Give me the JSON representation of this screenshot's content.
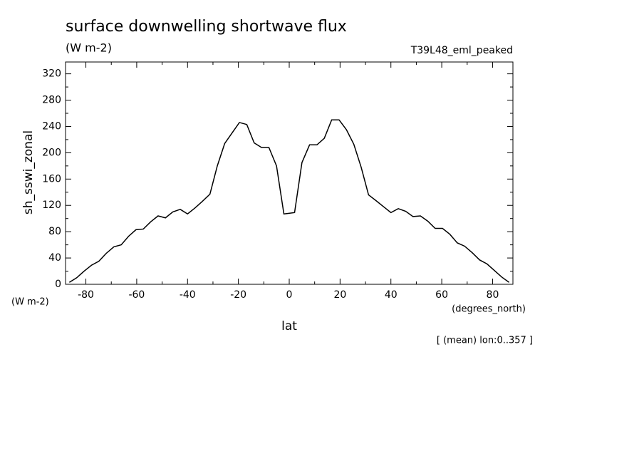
{
  "chart_data": {
    "type": "line",
    "title": "surface downwelling shortwave flux",
    "subtitle": "(W m-2)",
    "annotation": "T39L48_eml_peaked",
    "ylabel": "sh_sswi_zonal",
    "yunits": "(W m-2)",
    "xunits": "(degrees_north)",
    "xlabel": "lat",
    "footnote": "[ (mean) lon:0..357 ]",
    "color": "#000000",
    "x": [
      -86.5,
      -83.6,
      -80.7,
      -77.8,
      -74.9,
      -72.0,
      -69.0,
      -66.1,
      -63.2,
      -60.3,
      -57.4,
      -54.5,
      -51.6,
      -48.7,
      -45.8,
      -42.9,
      -40.0,
      -37.1,
      -34.2,
      -31.2,
      -28.3,
      -25.4,
      -22.5,
      -19.6,
      -16.7,
      -13.8,
      -10.9,
      -8.0,
      -5.0,
      -2.1,
      2.1,
      5.0,
      8.0,
      10.9,
      13.8,
      16.7,
      19.6,
      22.5,
      25.4,
      28.3,
      31.2,
      34.2,
      37.1,
      40.0,
      42.9,
      45.8,
      48.7,
      51.6,
      54.5,
      57.4,
      60.3,
      63.2,
      66.1,
      69.0,
      72.0,
      74.9,
      77.8,
      80.7,
      83.6,
      86.5
    ],
    "values": [
      3,
      10,
      20,
      29,
      35,
      47,
      57,
      60,
      73,
      83,
      84,
      95,
      104,
      101,
      110,
      114,
      107,
      116,
      126,
      137,
      180,
      214,
      230,
      246,
      243,
      215,
      208,
      208,
      180,
      107,
      109,
      185,
      212,
      212,
      222,
      250,
      250,
      235,
      213,
      178,
      136,
      127,
      118,
      109,
      115,
      111,
      103,
      104,
      96,
      85,
      85,
      76,
      63,
      58,
      48,
      37,
      31,
      21,
      11,
      3
    ],
    "xlim": [
      -88,
      88
    ],
    "ylim": [
      0,
      338
    ],
    "xticks": [
      -80,
      -60,
      -40,
      -20,
      0,
      20,
      40,
      60,
      80
    ],
    "yticks": [
      0,
      40,
      80,
      120,
      160,
      200,
      240,
      280,
      320
    ],
    "xticks_minor": [
      -70,
      -50,
      -30,
      -10,
      10,
      30,
      50,
      70
    ],
    "yticks_minor": [
      20,
      60,
      100,
      140,
      180,
      220,
      260,
      300
    ]
  }
}
